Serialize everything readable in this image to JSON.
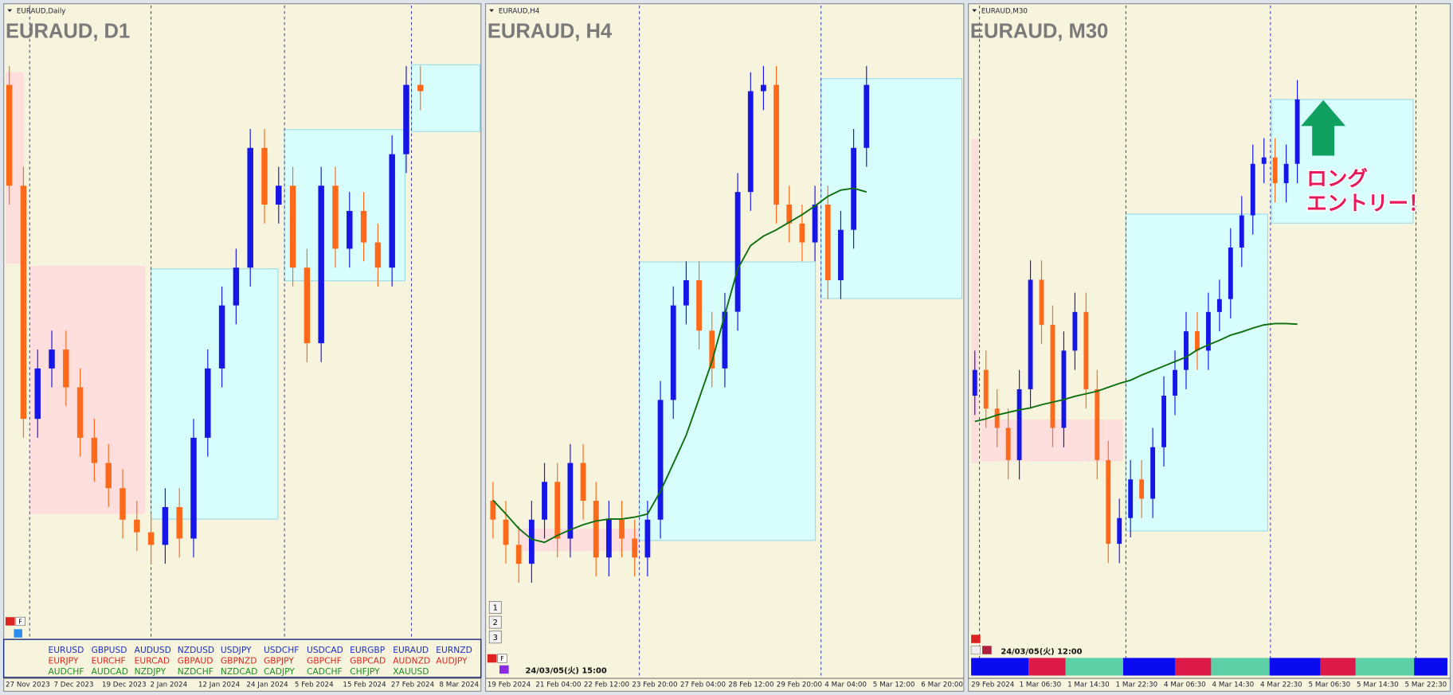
{
  "panels": [
    {
      "window_title": "EURAUD,Daily",
      "symbol_label": "EURAUD, D1",
      "f_button": "F",
      "ylim": [
        0,
        100
      ],
      "up_color": "#1616e6",
      "down_color": "#ff6a1a",
      "x_labels": [
        "27 Nov 2023",
        "7 Dec 2023",
        "19 Dec 2023",
        "2 Jan 2024",
        "12 Jan 2024",
        "24 Jan 2024",
        "5 Feb 2024",
        "15 Feb 2024",
        "27 Feb 2024",
        "8 Mar 2024"
      ],
      "candles": {
        "open": [
          88,
          72,
          35,
          43,
          46,
          40,
          32,
          28,
          24,
          19,
          17,
          15,
          21,
          16,
          32,
          43,
          53,
          59,
          78,
          69,
          72,
          59,
          47,
          72,
          62,
          68,
          63,
          59,
          77,
          88
        ],
        "high": [
          91,
          75,
          46,
          49,
          49,
          43,
          35,
          31,
          27,
          22,
          20,
          24,
          24,
          35,
          46,
          56,
          62,
          81,
          81,
          75,
          75,
          62,
          75,
          75,
          71,
          71,
          66,
          80,
          91,
          91
        ],
        "low": [
          69,
          32,
          32,
          40,
          37,
          29,
          25,
          21,
          16,
          14,
          12,
          12,
          13,
          13,
          29,
          40,
          50,
          56,
          66,
          66,
          56,
          44,
          44,
          59,
          59,
          60,
          56,
          56,
          74,
          84
        ],
        "close": [
          72,
          35,
          43,
          46,
          40,
          32,
          28,
          24,
          19,
          17,
          15,
          21,
          16,
          32,
          43,
          53,
          59,
          78,
          69,
          72,
          59,
          47,
          72,
          62,
          68,
          63,
          59,
          77,
          88,
          87
        ]
      },
      "zones": [
        {
          "high": 90,
          "low": 59.6,
          "color": "#ffdede"
        },
        {
          "high": 59.3,
          "low": 19.9,
          "color": "#ffdede"
        },
        {
          "high": 58.8,
          "low": 19.1,
          "color": "#d8fdfd"
        },
        {
          "high": 80.9,
          "low": 56.9,
          "color": "#d8fdfd"
        },
        {
          "high": 91.2,
          "low": 80.6,
          "color": "#d8fdfd"
        }
      ],
      "symbol_row_colors": [
        "#1b2fc6",
        "#d9271f",
        "#1f8f1f"
      ],
      "symbols": [
        [
          "EURUSD",
          "GBPUSD",
          "AUDUSD",
          "NZDUSD",
          "USDJPY",
          "USDCHF",
          "USDCAD",
          "EURGBP",
          "EURAUD",
          "EURNZD"
        ],
        [
          "EURJPY",
          "EURCHF",
          "EURCAD",
          "GBPAUD",
          "GBPNZD",
          "GBPJPY",
          "GBPCHF",
          "GBPCAD",
          "AUDNZD",
          "AUDJPY"
        ],
        [
          "AUDCHF",
          "AUDCAD",
          "NZDJPY",
          "NZDCHF",
          "NZDCAD",
          "CADJPY",
          "CADCHF",
          "CHFJPY",
          "XAUUSD"
        ]
      ]
    },
    {
      "window_title": "EURAUD,H4",
      "symbol_label": "EURAUD, H4",
      "f_button": "F",
      "ylim": [
        0,
        100
      ],
      "up_color": "#1616e6",
      "down_color": "#ff6a1a",
      "ma_color": "#0a6e0a",
      "x_labels": [
        "19 Feb 2024",
        "21 Feb 04:00",
        "22 Feb 12:00",
        "23 Feb 20:00",
        "27 Feb 04:00",
        "28 Feb 12:00",
        "29 Feb 20:00",
        "4 Mar 04:00",
        "5 Mar 12:00",
        "6 Mar 20:00"
      ],
      "candles": {
        "open": [
          22,
          19,
          15,
          12,
          19,
          25,
          16,
          28,
          22,
          13,
          19,
          16,
          13,
          19,
          38,
          53,
          57,
          49,
          43,
          52,
          71,
          87,
          88,
          69,
          66,
          63,
          69,
          57,
          65,
          78
        ],
        "high": [
          25,
          22,
          18,
          22,
          28,
          28,
          31,
          31,
          25,
          22,
          22,
          19,
          22,
          41,
          56,
          60,
          60,
          52,
          55,
          74,
          90,
          91,
          91,
          72,
          69,
          72,
          72,
          68,
          81,
          91
        ],
        "low": [
          16,
          12,
          9,
          9,
          16,
          13,
          13,
          19,
          10,
          10,
          13,
          10,
          10,
          16,
          35,
          50,
          46,
          40,
          40,
          49,
          68,
          84,
          66,
          63,
          60,
          60,
          54,
          54,
          62,
          75
        ],
        "close": [
          19,
          15,
          12,
          19,
          25,
          16,
          28,
          22,
          13,
          19,
          16,
          13,
          19,
          38,
          53,
          57,
          49,
          43,
          52,
          71,
          87,
          88,
          69,
          66,
          63,
          69,
          57,
          65,
          78,
          88
        ]
      },
      "moving_average": [
        22.1,
        19.9,
        17.6,
        15.9,
        15.4,
        16.5,
        17.4,
        18.2,
        18.8,
        19.1,
        19.1,
        19.4,
        19.9,
        23.5,
        27.9,
        32.4,
        38.2,
        44.1,
        51.5,
        58.8,
        62.5,
        64,
        65,
        66.2,
        67.4,
        68.8,
        70.3,
        71.3,
        71.6,
        71
      ],
      "zones": [
        {
          "high": 17.6,
          "low": 14,
          "color": "#ffdede"
        },
        {
          "high": 59.9,
          "low": 15.7,
          "color": "#d8fdfd"
        },
        {
          "high": 89,
          "low": 54.1,
          "color": "#d8fdfd"
        }
      ],
      "buttons": [
        "1",
        "2",
        "3"
      ],
      "timestamp": "24/03/05(火) 15:00"
    },
    {
      "window_title": "EURAUD,M30",
      "symbol_label": "EURAUD, M30",
      "ylim": [
        0,
        100
      ],
      "up_color": "#1616e6",
      "down_color": "#ff6a1a",
      "ma_color": "#0a6e0a",
      "x_labels": [
        "29 Feb 2024",
        "1 Mar 06:30",
        "1 Mar 14:30",
        "1 Mar 22:30",
        "4 Mar 06:30",
        "4 Mar 14:30",
        "4 Mar 22:30",
        "5 Mar 06:30",
        "5 Mar 14:30",
        "5 Mar 22:30"
      ],
      "candles": {
        "open": [
          40,
          44,
          38,
          35,
          30,
          41,
          58,
          51,
          35,
          47,
          53,
          41,
          30,
          17,
          21,
          27,
          24,
          32,
          40,
          44,
          50,
          47,
          53,
          55,
          63,
          68,
          76,
          77,
          73,
          76
        ],
        "high": [
          47,
          47,
          41,
          38,
          44,
          61,
          61,
          54,
          50,
          56,
          56,
          44,
          33,
          24,
          30,
          30,
          35,
          43,
          47,
          53,
          53,
          56,
          58,
          66,
          71,
          79,
          80,
          80,
          79,
          89
        ],
        "low": [
          37,
          35,
          32,
          27,
          27,
          38,
          48,
          32,
          32,
          44,
          38,
          27,
          14,
          14,
          18,
          21,
          21,
          29,
          37,
          41,
          44,
          44,
          50,
          52,
          60,
          65,
          73,
          70,
          70,
          73
        ],
        "close": [
          44,
          38,
          35,
          30,
          41,
          58,
          51,
          35,
          47,
          53,
          41,
          30,
          17,
          21,
          27,
          24,
          32,
          40,
          44,
          50,
          47,
          53,
          55,
          63,
          68,
          76,
          77,
          73,
          76,
          86
        ]
      },
      "moving_average": [
        36,
        36.4,
        37,
        37.4,
        37.8,
        38.1,
        38.6,
        39,
        39.4,
        39.9,
        40.3,
        40.7,
        41.3,
        41.9,
        42.4,
        43.2,
        43.9,
        44.6,
        45.3,
        46,
        47.1,
        47.9,
        48.6,
        49.4,
        49.9,
        50.5,
        51,
        51.2,
        51.2,
        51.1
      ],
      "zones": [
        {
          "high": 79.9,
          "low": 29.5,
          "color": "#ffdede"
        },
        {
          "high": 36.3,
          "low": 29.8,
          "color": "#ffdede"
        },
        {
          "high": 68.2,
          "low": 19,
          "color": "#d8fdfd"
        },
        {
          "high": 86,
          "low": 66.8,
          "color": "#d8fdfd"
        }
      ],
      "timestamp": "24/03/05(火) 12:00",
      "annotation": [
        "ロング",
        "エントリー！"
      ]
    }
  ]
}
